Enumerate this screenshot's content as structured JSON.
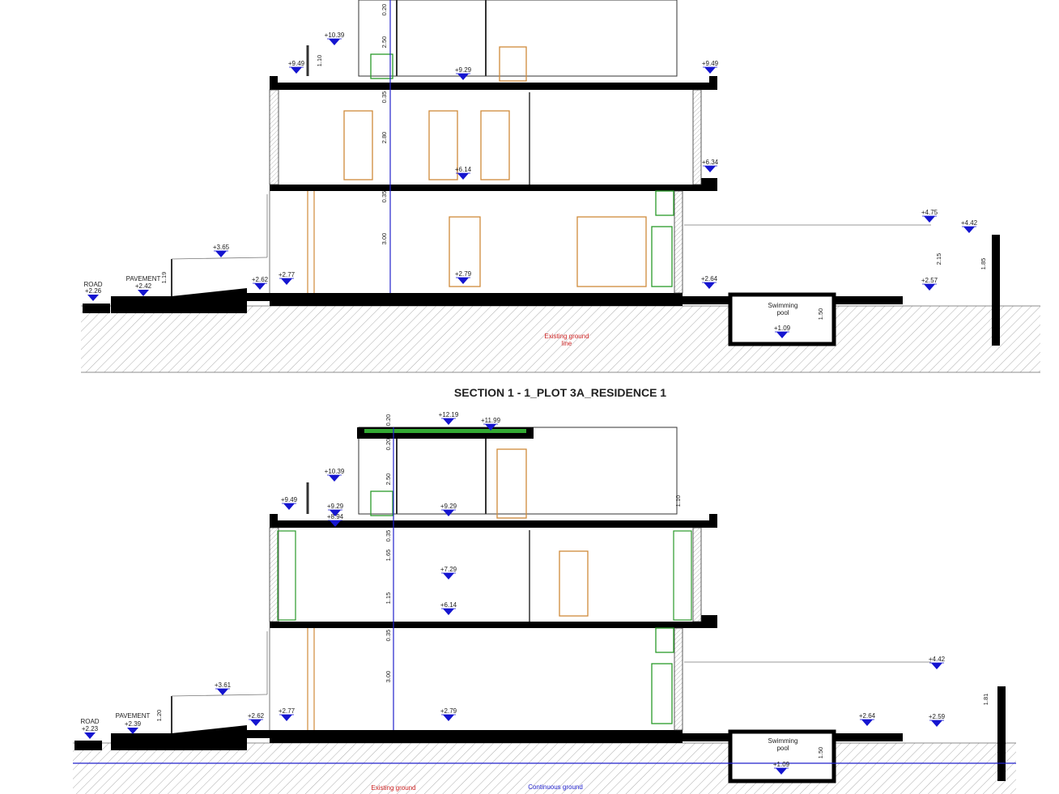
{
  "sections": [
    {
      "levels": [
        "+10.39",
        "+9.49",
        "+9.29",
        "+9.49",
        "+6.14",
        "+6.34",
        "+3.65",
        "+2.62",
        "+2.77",
        "+2.79",
        "+2.64",
        "+4.75",
        "+4.42",
        "+2.57",
        "+1.09"
      ],
      "places": [
        {
          "name": "ROAD",
          "level": "+2.26"
        },
        {
          "name": "PAVEMENT",
          "level": "+2.42"
        }
      ],
      "dimensions": [
        "0.20",
        "2.50",
        "1.10",
        "0.35",
        "2.80",
        "0.35",
        "3.00",
        "1.19",
        "2.15",
        "1.85",
        "1.50"
      ],
      "notes": [
        [
          "Swimming",
          "pool"
        ],
        [
          "Existing ground",
          "line"
        ]
      ],
      "title": "SECTION 1 - 1_PLOT 3A_RESIDENCE 1"
    },
    {
      "levels": [
        "+12.19",
        "+11.99",
        "+10.39",
        "+9.49",
        "+9.29",
        "+8.94",
        "+9.29",
        "+7.29",
        "+6.14",
        "+3.61",
        "+2.62",
        "+2.77",
        "+2.79",
        "+2.64",
        "+2.59",
        "+4.42",
        "+1.09"
      ],
      "places": [
        {
          "name": "ROAD",
          "level": "+2.23"
        },
        {
          "name": "PAVEMENT",
          "level": "+2.39"
        }
      ],
      "dimensions": [
        "0.20",
        "0.20",
        "2.50",
        "1.10",
        "0.35",
        "1.65",
        "1.15",
        "0.35",
        "3.00",
        "1.20",
        "1.81",
        "1.50"
      ],
      "notes": [
        [
          "Swimming",
          "pool"
        ],
        [
          "Existing ground"
        ],
        [
          "Continuous ground"
        ]
      ]
    }
  ]
}
